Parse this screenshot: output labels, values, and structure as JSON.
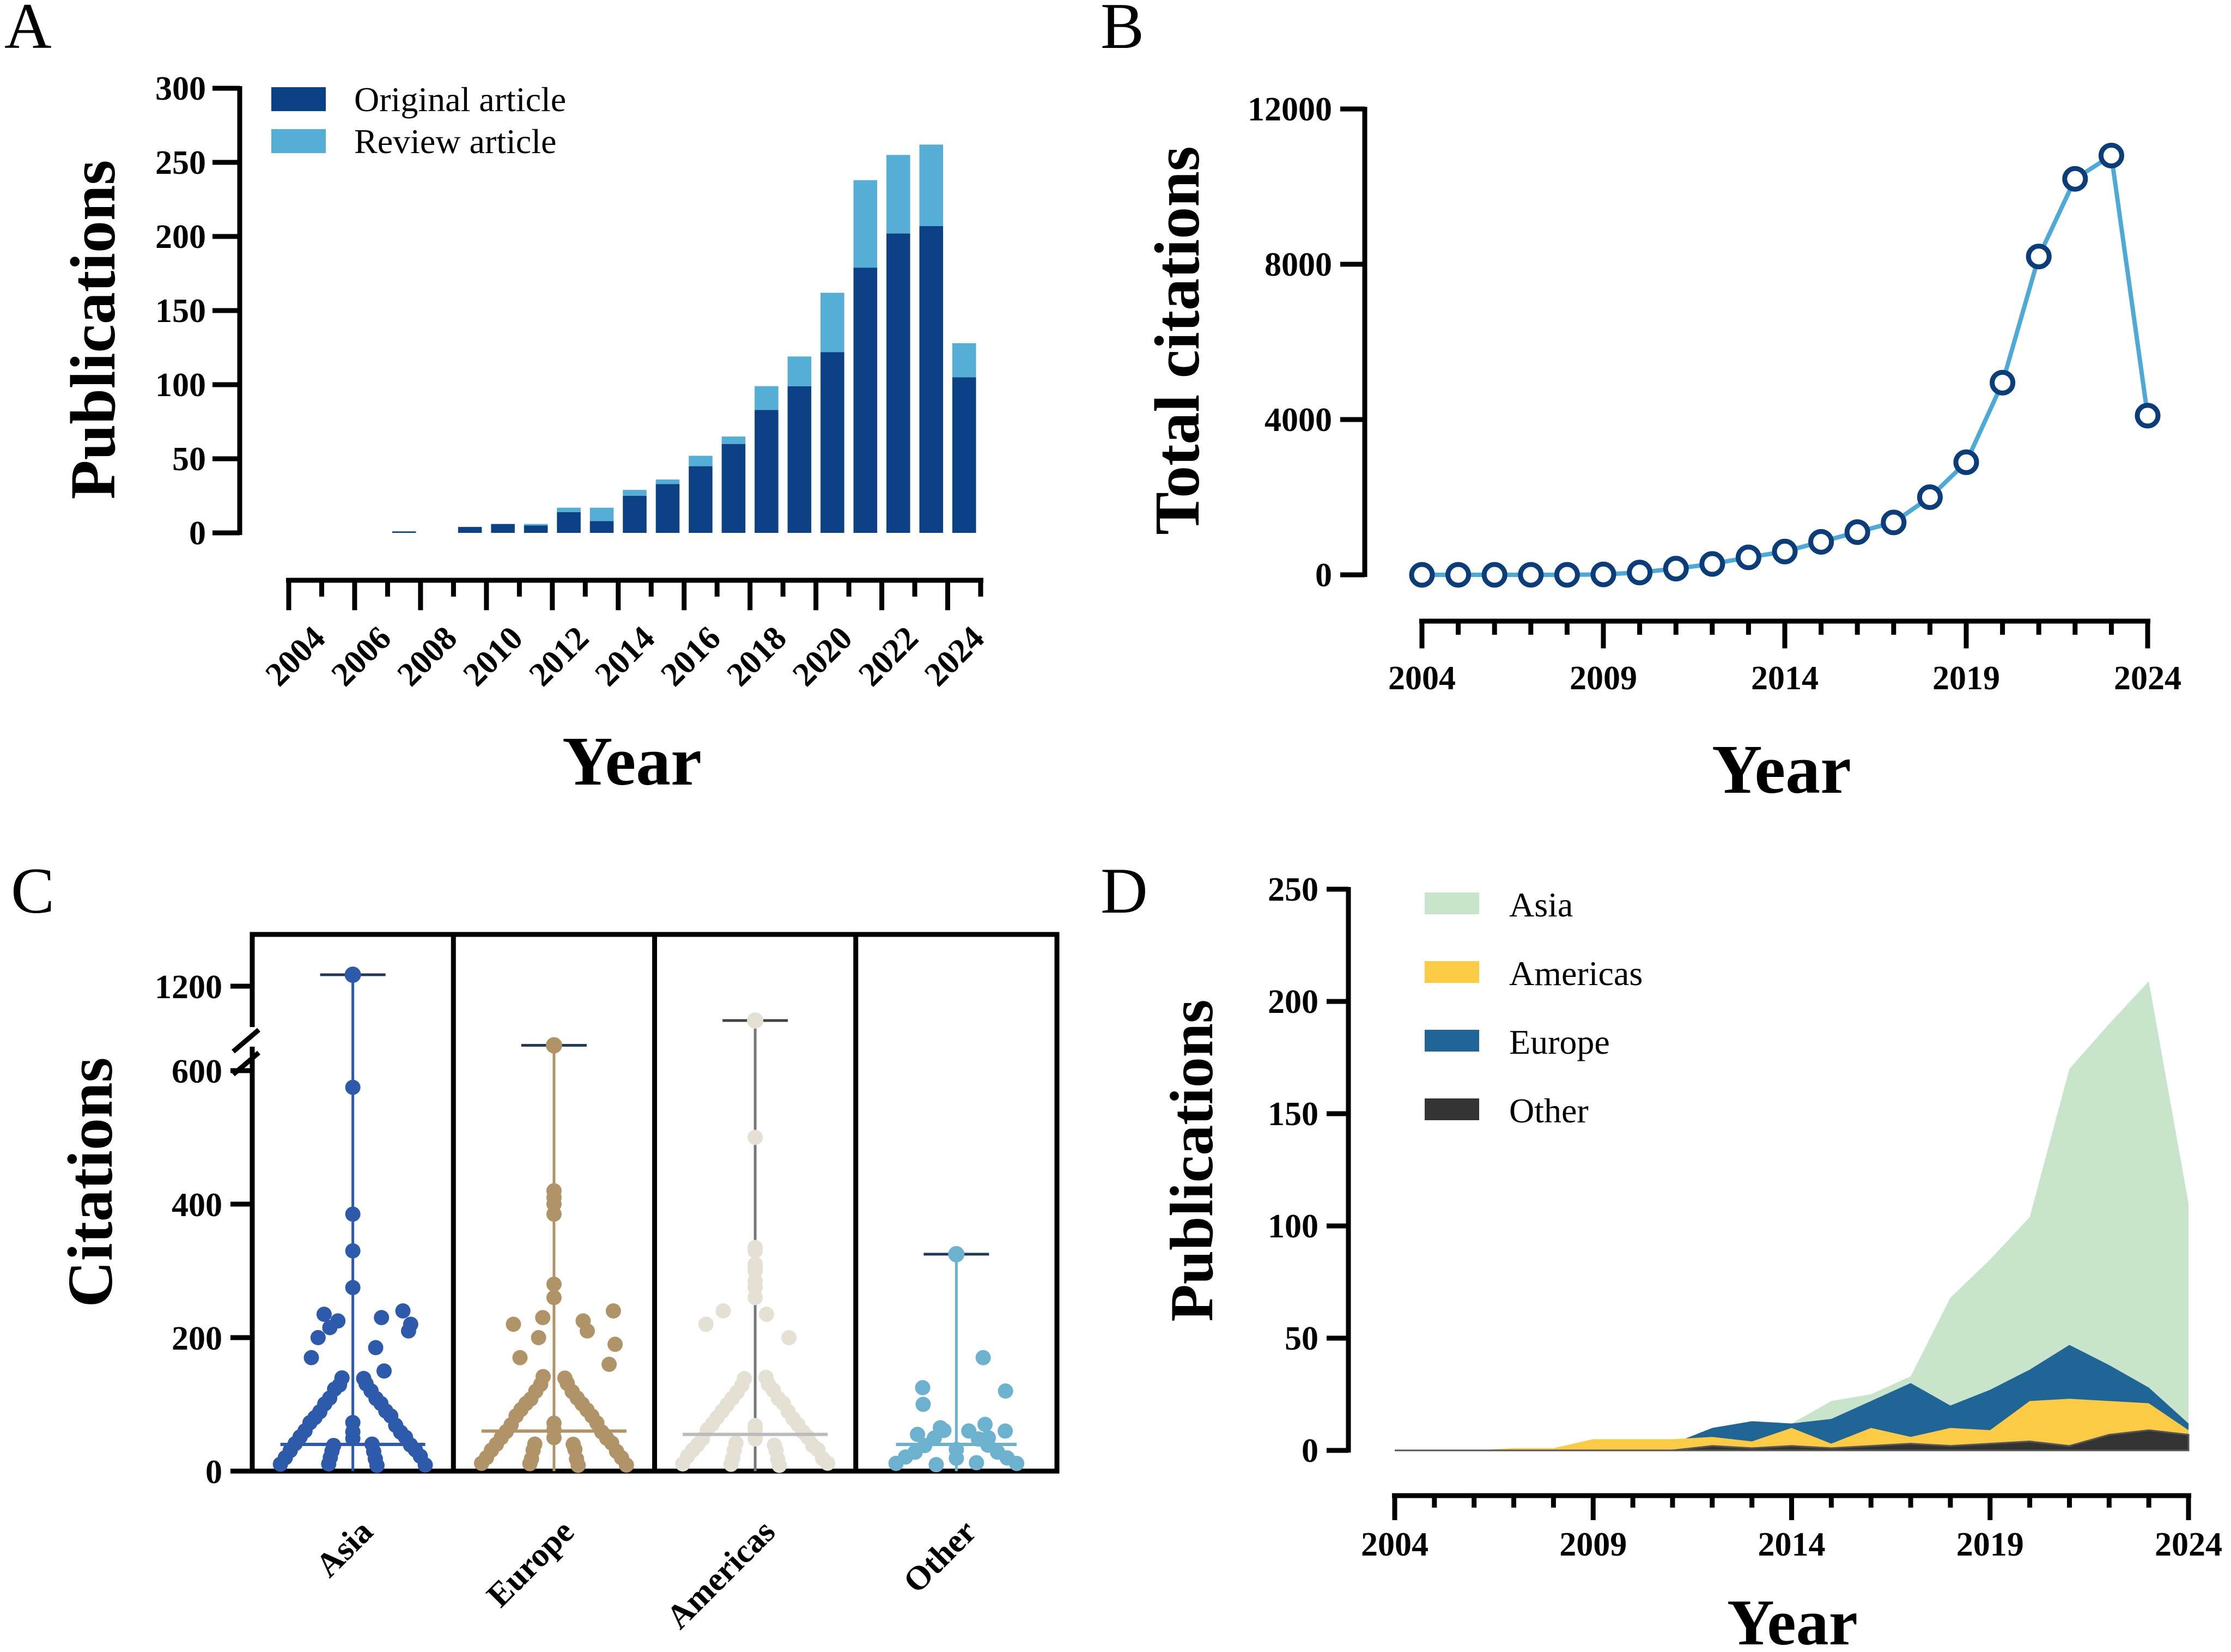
{
  "figure": {
    "panels": [
      "A",
      "B",
      "C",
      "D"
    ]
  },
  "chart_data": [
    {
      "panel": "A",
      "type": "bar",
      "stacked": true,
      "title": "",
      "xlabel": "Year",
      "ylabel": "Publications",
      "ylim": [
        0,
        300
      ],
      "yticks": [
        "0",
        "50",
        "100",
        "150",
        "200",
        "250",
        "300"
      ],
      "xtick_labels": [
        "2004",
        "2006",
        "2008",
        "2010",
        "2012",
        "2014",
        "2016",
        "2018",
        "2020",
        "2022",
        "2024"
      ],
      "categories": [
        2004,
        2005,
        2006,
        2007,
        2008,
        2009,
        2010,
        2011,
        2012,
        2013,
        2014,
        2015,
        2016,
        2017,
        2018,
        2019,
        2020,
        2021,
        2022,
        2023,
        2024
      ],
      "series": [
        {
          "name": "Original article",
          "color": "#0c4285",
          "values": [
            0,
            0,
            0,
            1,
            0,
            4,
            6,
            5,
            14,
            8,
            25,
            33,
            45,
            60,
            83,
            99,
            122,
            179,
            202,
            207,
            105
          ]
        },
        {
          "name": "Review article",
          "color": "#55aed6",
          "values": [
            0,
            0,
            0,
            0,
            0,
            0,
            0,
            1,
            3,
            9,
            4,
            3,
            7,
            5,
            16,
            20,
            40,
            59,
            53,
            55,
            23
          ]
        }
      ],
      "legend": "top-left"
    },
    {
      "panel": "B",
      "type": "line",
      "title": "",
      "xlabel": "Year",
      "ylabel": "Total citations",
      "ylim": [
        0,
        12000
      ],
      "yticks": [
        "0",
        "4000",
        "8000",
        "12000"
      ],
      "xticks": [
        "2004",
        "2009",
        "2014",
        "2019",
        "2024"
      ],
      "x": [
        2004,
        2005,
        2006,
        2007,
        2008,
        2009,
        2010,
        2011,
        2012,
        2013,
        2014,
        2015,
        2016,
        2017,
        2018,
        2019,
        2020,
        2021,
        2022,
        2023,
        2024
      ],
      "y": [
        0,
        0,
        0,
        0,
        0,
        10,
        60,
        160,
        280,
        450,
        600,
        850,
        1100,
        1350,
        2000,
        2900,
        4950,
        8200,
        10200,
        10800,
        4100
      ],
      "line_color": "#4da9d6",
      "marker_color": "#0b3d7a"
    },
    {
      "panel": "C",
      "type": "scatter",
      "subtype": "dot-plot",
      "title": "",
      "xlabel": "",
      "ylabel": "Citations",
      "y_axis_break": [
        600,
        1100
      ],
      "yticks": [
        "0",
        "200",
        "400",
        "600",
        "1200"
      ],
      "categories": [
        "Asia",
        "Europe",
        "Americas",
        "Other"
      ],
      "colors": [
        "#2e5aac",
        "#b09468",
        "#e4e0d3",
        "#6cb2cf"
      ],
      "max": [
        1230,
        1045,
        1110,
        325
      ],
      "median": [
        40,
        60,
        55,
        40
      ],
      "outliers": [
        [
          575,
          385,
          330,
          275,
          240,
          235,
          230,
          225,
          220,
          215,
          210,
          200,
          185,
          170,
          150
        ],
        [
          420,
          410,
          400,
          385,
          280,
          260,
          240,
          230,
          225,
          220,
          210,
          200,
          190,
          170,
          160
        ],
        [
          500,
          335,
          330,
          310,
          305,
          300,
          285,
          275,
          260,
          240,
          235,
          220,
          200
        ],
        [
          170,
          125,
          120,
          100,
          70,
          65,
          60,
          55,
          50
        ]
      ]
    },
    {
      "panel": "D",
      "type": "area",
      "title": "",
      "xlabel": "Year",
      "ylabel": "Publications",
      "ylim": [
        0,
        250
      ],
      "yticks": [
        "0",
        "50",
        "100",
        "150",
        "200",
        "250"
      ],
      "xticks": [
        "2004",
        "2009",
        "2014",
        "2019",
        "2024"
      ],
      "x": [
        2004,
        2005,
        2006,
        2007,
        2008,
        2009,
        2010,
        2011,
        2012,
        2013,
        2014,
        2015,
        2016,
        2017,
        2018,
        2019,
        2020,
        2021,
        2022,
        2023,
        2024
      ],
      "series": [
        {
          "name": "Asia",
          "color": "#c8e5cc",
          "values": [
            0,
            0,
            0,
            0,
            0,
            3,
            3,
            3,
            5,
            4,
            12,
            22,
            25,
            33,
            68,
            85,
            104,
            170,
            190,
            209,
            110
          ]
        },
        {
          "name": "Americas",
          "color": "#fbcb46",
          "values": [
            0,
            0,
            0,
            1,
            1,
            5,
            5,
            5,
            6,
            4,
            10,
            3,
            10,
            6,
            10,
            9,
            22,
            23,
            22,
            21,
            9
          ]
        },
        {
          "name": "Europe",
          "color": "#1f6596",
          "values": [
            0,
            0,
            0,
            0,
            0,
            3,
            3,
            3,
            10,
            13,
            12,
            14,
            22,
            30,
            20,
            27,
            36,
            47,
            38,
            28,
            12
          ]
        },
        {
          "name": "Other",
          "color": "#333333",
          "values": [
            0,
            0,
            0,
            0,
            0,
            0,
            0,
            0,
            2,
            1,
            2,
            1,
            2,
            3,
            2,
            3,
            4,
            2,
            7,
            9,
            7
          ]
        }
      ],
      "legend": "top-left"
    }
  ]
}
